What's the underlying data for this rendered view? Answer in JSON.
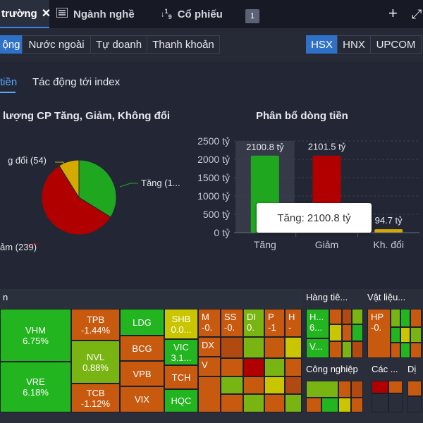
{
  "tabs": [
    {
      "label": "trường",
      "icon": "close-icon",
      "active": true
    },
    {
      "label": "Ngành nghề",
      "icon": "list-icon"
    },
    {
      "label": "Cổ phiếu",
      "icon": "sort-numeric-icon"
    }
  ],
  "tab_badge": "1",
  "filters": [
    "ộng",
    "Nước ngoài",
    "Tự doanh",
    "Thanh khoản"
  ],
  "exchanges": [
    "HSX",
    "HNX",
    "UPCOM"
  ],
  "subtabs": [
    "tiền",
    "Tác động tới index"
  ],
  "pie_title": "lượng CP Tăng, Giảm, Không đổi",
  "bar_title": "Phân bổ dòng tiền",
  "pie_labels": {
    "unchanged": "g đổi (54)",
    "up": "Tăng (1...",
    "down": "ảm (239)"
  },
  "tooltip": "Tăng: 2100.8 tỷ",
  "colors": {
    "up": "#1fa81f",
    "down": "#b00000",
    "unchanged": "#d4a900",
    "accent": "#3071c8"
  },
  "chart_data": [
    {
      "type": "pie",
      "title": "lượng CP Tăng, Giảm, Không đổi",
      "slices": [
        {
          "label": "Tăng",
          "value": null
        },
        {
          "label": "Giảm",
          "value": 239
        },
        {
          "label": "Không đổi",
          "value": 54
        }
      ]
    },
    {
      "type": "bar",
      "title": "Phân bổ dòng tiền",
      "categories": [
        "Tăng",
        "Giảm",
        "Kh. đổi"
      ],
      "values": [
        2100.8,
        2101.5,
        94.7
      ],
      "value_labels": [
        "2100.8 tỷ",
        "2101.5 tỷ",
        "94.7 tỷ"
      ],
      "yticks": [
        "0 tỷ",
        "500 tỷ",
        "1000 tỷ",
        "1500 tỷ",
        "2000 tỷ",
        "2500 tỷ"
      ],
      "ylim": [
        0,
        2500
      ],
      "grid": true
    }
  ],
  "heatmap": {
    "groups": [
      "Hàng tiê...",
      "Vật liệu...",
      "Công nghiệp",
      "Các ...",
      "Dị"
    ],
    "tiles": [
      {
        "ticker": "VHM",
        "change": "6.75%"
      },
      {
        "ticker": "VRE",
        "change": "6.18%"
      },
      {
        "ticker": "TPB",
        "change": "-1.44%"
      },
      {
        "ticker": "NVL",
        "change": "0.88%"
      },
      {
        "ticker": "TCB",
        "change": "-1.12%"
      },
      {
        "ticker": "LDG",
        "change": ""
      },
      {
        "ticker": "BCG",
        "change": ""
      },
      {
        "ticker": "VPB",
        "change": ""
      },
      {
        "ticker": "VIX",
        "change": ""
      },
      {
        "ticker": "SHB",
        "change": "0.0..."
      },
      {
        "ticker": "VIC",
        "change": "3.1..."
      },
      {
        "ticker": "TCH",
        "change": ""
      },
      {
        "ticker": "HQC",
        "change": ""
      },
      {
        "ticker": "M",
        "change": "-0."
      },
      {
        "ticker": "SS",
        "change": "-0."
      },
      {
        "ticker": "DI",
        "change": "0."
      },
      {
        "ticker": "P",
        "change": "-1"
      },
      {
        "ticker": "H",
        "change": "-"
      },
      {
        "ticker": "DX",
        "change": ""
      },
      {
        "ticker": "V",
        "change": ""
      },
      {
        "ticker": "H...",
        "change": "6..."
      },
      {
        "ticker": "V...",
        "change": ""
      },
      {
        "ticker": "HP",
        "change": "-0."
      }
    ]
  }
}
